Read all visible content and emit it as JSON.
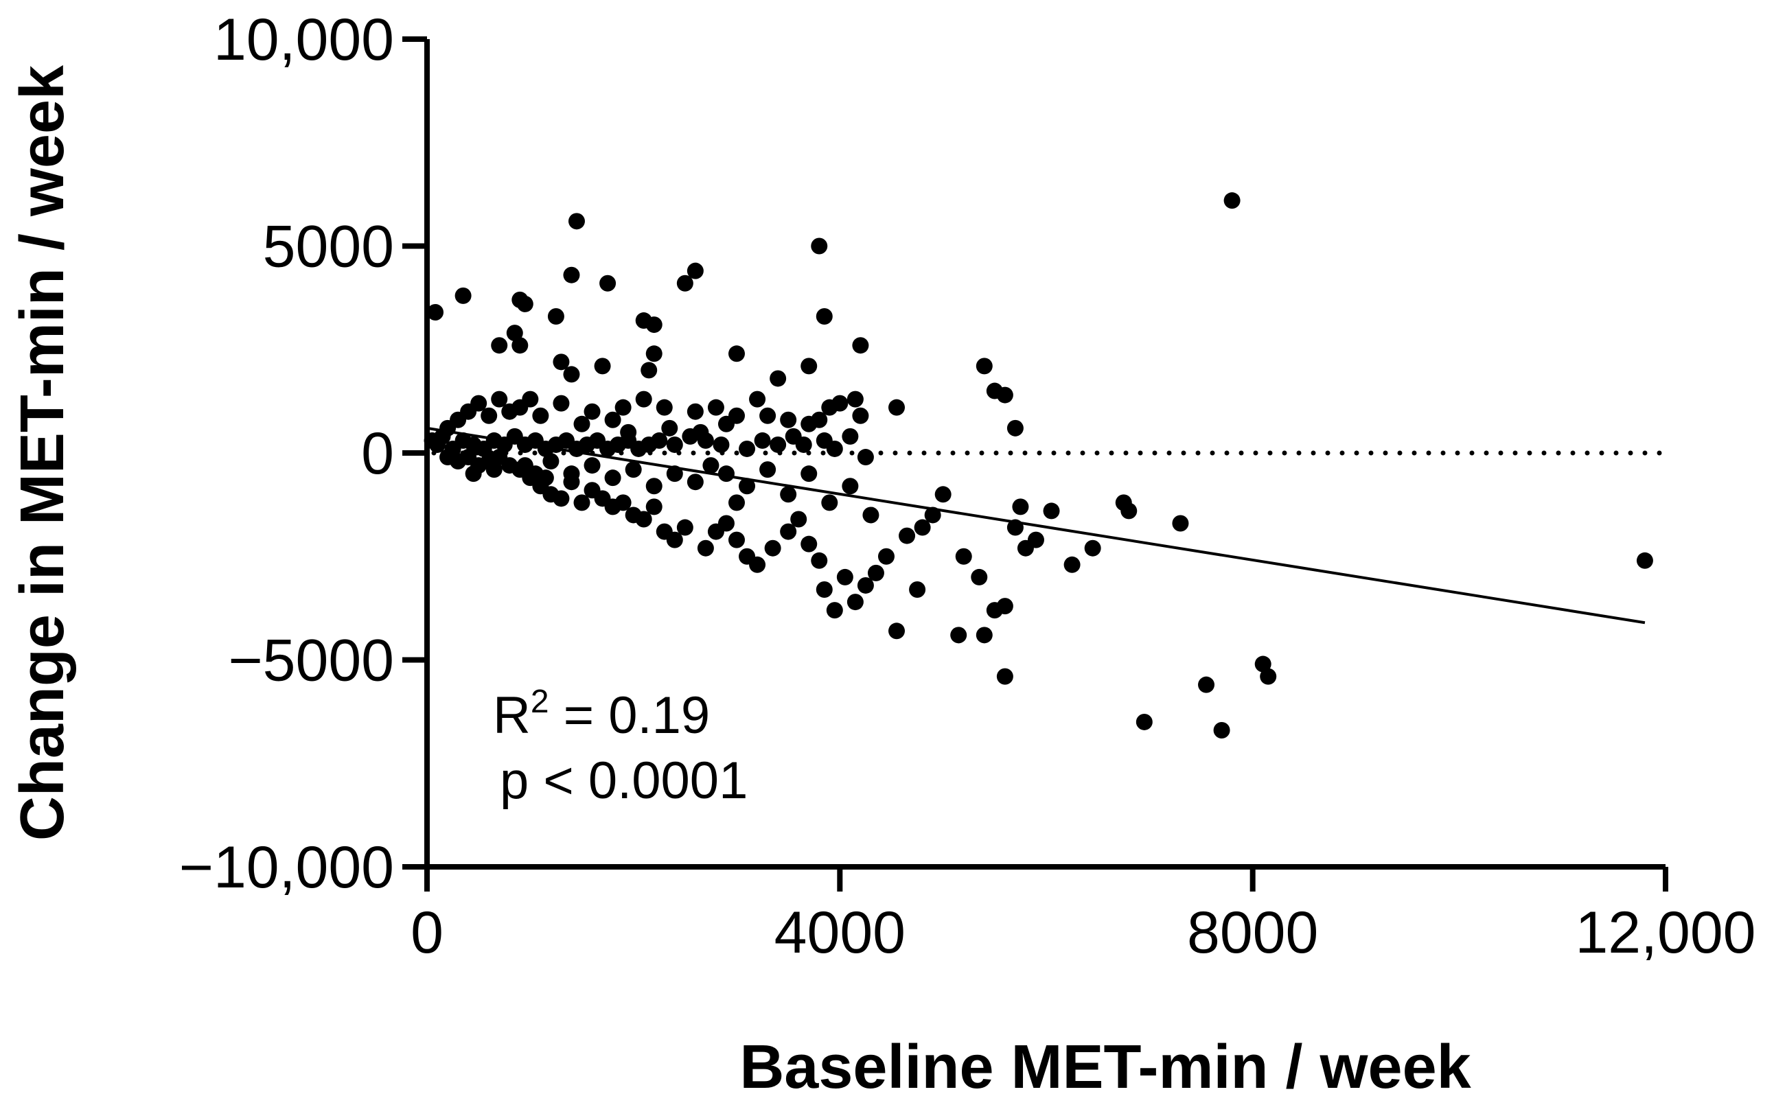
{
  "chart_data": {
    "type": "scatter",
    "xlabel": "Baseline MET-min / week",
    "ylabel": "Change in MET-min / week",
    "xlim": [
      0,
      12000
    ],
    "ylim": [
      -10000,
      10000
    ],
    "x_ticks": [
      "0",
      "4000",
      "8000",
      "12,000"
    ],
    "y_ticks": [
      "10,000",
      "5000",
      "0",
      "−5000",
      "−10,000"
    ],
    "x_tick_values": [
      0,
      4000,
      8000,
      12000
    ],
    "y_tick_values": [
      10000,
      5000,
      0,
      -5000,
      -10000
    ],
    "grid": false,
    "reference_line": {
      "y": 0,
      "style": "dotted",
      "x_range": [
        0,
        12000
      ]
    },
    "regression_line": {
      "x": [
        0,
        11800
      ],
      "y": [
        600,
        -4100
      ]
    },
    "annotations": {
      "r2_base": "R",
      "r2_sup": "2",
      "r2_value": " = 0.19",
      "p_value": "p < 0.0001"
    },
    "series": [
      {
        "values": [
          [
            80,
            3400
          ],
          [
            350,
            3800
          ],
          [
            900,
            3700
          ],
          [
            950,
            3600
          ],
          [
            1250,
            3300
          ],
          [
            1400,
            4300
          ],
          [
            1450,
            5600
          ],
          [
            1750,
            4100
          ],
          [
            2100,
            3200
          ],
          [
            2200,
            3100
          ],
          [
            2500,
            4100
          ],
          [
            2600,
            4400
          ],
          [
            3800,
            5000
          ],
          [
            3850,
            3300
          ],
          [
            7800,
            6100
          ],
          [
            700,
            2600
          ],
          [
            850,
            2900
          ],
          [
            900,
            2600
          ],
          [
            1300,
            2200
          ],
          [
            1400,
            1900
          ],
          [
            1700,
            2100
          ],
          [
            2200,
            2400
          ],
          [
            2150,
            2000
          ],
          [
            3000,
            2400
          ],
          [
            3400,
            1800
          ],
          [
            3700,
            2100
          ],
          [
            4200,
            2600
          ],
          [
            5400,
            2100
          ],
          [
            5500,
            1500
          ],
          [
            5600,
            1400
          ],
          [
            4550,
            1100
          ],
          [
            5700,
            600
          ],
          [
            4000,
            1200
          ],
          [
            3900,
            1100
          ],
          [
            4150,
            1300
          ],
          [
            4200,
            900
          ],
          [
            3700,
            700
          ],
          [
            3800,
            800
          ],
          [
            3850,
            300
          ],
          [
            4100,
            400
          ],
          [
            3950,
            100
          ],
          [
            3000,
            900
          ],
          [
            3200,
            1300
          ],
          [
            3300,
            900
          ],
          [
            3500,
            800
          ],
          [
            2600,
            1000
          ],
          [
            2800,
            1100
          ],
          [
            2900,
            700
          ],
          [
            2300,
            1100
          ],
          [
            2100,
            1300
          ],
          [
            1900,
            1100
          ],
          [
            1800,
            800
          ],
          [
            1600,
            1000
          ],
          [
            1500,
            700
          ],
          [
            1300,
            1200
          ],
          [
            1100,
            900
          ],
          [
            1000,
            1300
          ],
          [
            900,
            1100
          ],
          [
            800,
            1000
          ],
          [
            700,
            1300
          ],
          [
            600,
            900
          ],
          [
            500,
            1200
          ],
          [
            400,
            1000
          ],
          [
            300,
            800
          ],
          [
            200,
            600
          ],
          [
            150,
            400
          ],
          [
            100,
            200
          ],
          [
            50,
            300
          ],
          [
            250,
            100
          ],
          [
            350,
            300
          ],
          [
            450,
            200
          ],
          [
            550,
            100
          ],
          [
            650,
            300
          ],
          [
            750,
            200
          ],
          [
            850,
            400
          ],
          [
            950,
            200
          ],
          [
            1050,
            300
          ],
          [
            1150,
            100
          ],
          [
            1250,
            200
          ],
          [
            1350,
            300
          ],
          [
            1450,
            100
          ],
          [
            1550,
            200
          ],
          [
            1650,
            300
          ],
          [
            1750,
            100
          ],
          [
            1850,
            200
          ],
          [
            1950,
            300
          ],
          [
            2050,
            100
          ],
          [
            2150,
            200
          ],
          [
            2250,
            300
          ],
          [
            2400,
            200
          ],
          [
            2550,
            400
          ],
          [
            2700,
            300
          ],
          [
            2850,
            200
          ],
          [
            3100,
            100
          ],
          [
            3250,
            300
          ],
          [
            3400,
            200
          ],
          [
            200,
            -100
          ],
          [
            300,
            -200
          ],
          [
            400,
            -100
          ],
          [
            500,
            -300
          ],
          [
            600,
            -200
          ],
          [
            700,
            -100
          ],
          [
            800,
            -300
          ],
          [
            900,
            -400
          ],
          [
            1000,
            -600
          ],
          [
            1100,
            -800
          ],
          [
            1200,
            -1000
          ],
          [
            1300,
            -1100
          ],
          [
            1400,
            -700
          ],
          [
            1500,
            -1200
          ],
          [
            1600,
            -900
          ],
          [
            1700,
            -1100
          ],
          [
            1800,
            -1300
          ],
          [
            1900,
            -1200
          ],
          [
            2000,
            -1500
          ],
          [
            2100,
            -1600
          ],
          [
            2200,
            -1300
          ],
          [
            2300,
            -1900
          ],
          [
            2400,
            -2100
          ],
          [
            2500,
            -1800
          ],
          [
            2700,
            -2300
          ],
          [
            2800,
            -1900
          ],
          [
            2900,
            -1700
          ],
          [
            3000,
            -2100
          ],
          [
            3100,
            -2500
          ],
          [
            3200,
            -2700
          ],
          [
            3350,
            -2300
          ],
          [
            3500,
            -1900
          ],
          [
            3600,
            -1600
          ],
          [
            3700,
            -2200
          ],
          [
            3800,
            -2600
          ],
          [
            3850,
            -3300
          ],
          [
            3950,
            -3800
          ],
          [
            4050,
            -3000
          ],
          [
            4150,
            -3600
          ],
          [
            4250,
            -3200
          ],
          [
            4350,
            -2900
          ],
          [
            4450,
            -2500
          ],
          [
            4550,
            -4300
          ],
          [
            4650,
            -2000
          ],
          [
            4750,
            -3300
          ],
          [
            4800,
            -1800
          ],
          [
            4900,
            -1500
          ],
          [
            5000,
            -1000
          ],
          [
            5150,
            -4400
          ],
          [
            5200,
            -2500
          ],
          [
            5350,
            -3000
          ],
          [
            5400,
            -4400
          ],
          [
            5500,
            -3800
          ],
          [
            5600,
            -3700
          ],
          [
            5600,
            -5400
          ],
          [
            5700,
            -1800
          ],
          [
            5750,
            -1300
          ],
          [
            5800,
            -2300
          ],
          [
            5900,
            -2100
          ],
          [
            6050,
            -1400
          ],
          [
            6250,
            -2700
          ],
          [
            6450,
            -2300
          ],
          [
            6750,
            -1200
          ],
          [
            6800,
            -1400
          ],
          [
            6950,
            -6500
          ],
          [
            7300,
            -1700
          ],
          [
            7550,
            -5600
          ],
          [
            7700,
            -6700
          ],
          [
            8100,
            -5100
          ],
          [
            8150,
            -5400
          ],
          [
            11800,
            -2600
          ],
          [
            3000,
            -1200
          ],
          [
            2600,
            -700
          ],
          [
            2400,
            -500
          ],
          [
            2200,
            -800
          ],
          [
            2000,
            -400
          ],
          [
            1800,
            -600
          ],
          [
            1600,
            -300
          ],
          [
            1400,
            -500
          ],
          [
            1200,
            -200
          ],
          [
            2900,
            -500
          ],
          [
            3100,
            -800
          ],
          [
            3300,
            -400
          ],
          [
            3500,
            -1000
          ],
          [
            3700,
            -500
          ],
          [
            3900,
            -1200
          ],
          [
            4100,
            -800
          ],
          [
            4300,
            -1500
          ],
          [
            1950,
            500
          ],
          [
            2350,
            600
          ],
          [
            2650,
            500
          ],
          [
            3550,
            400
          ],
          [
            4250,
            -100
          ],
          [
            3650,
            200
          ],
          [
            2750,
            -300
          ],
          [
            1050,
            -500
          ],
          [
            950,
            -300
          ],
          [
            1150,
            -600
          ],
          [
            650,
            -400
          ],
          [
            450,
            -500
          ]
        ]
      }
    ]
  }
}
